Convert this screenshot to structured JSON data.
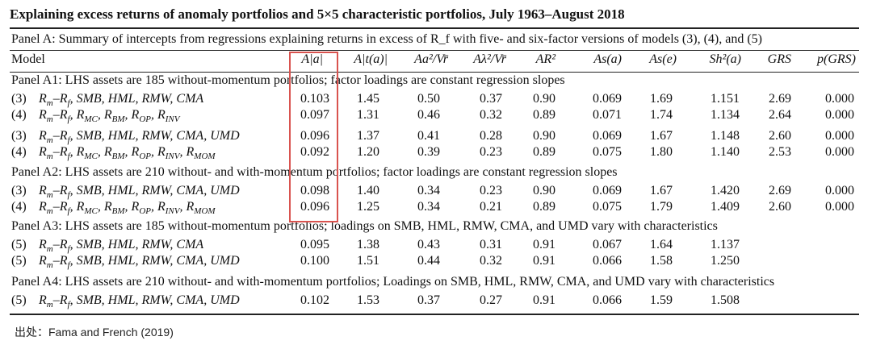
{
  "title": "Explaining excess returns of anomaly portfolios and 5×5 characteristic portfolios, July 1963–August 2018",
  "panel_a": "Panel A: Summary of intercepts from regressions explaining returns in excess of R_f with five- and six-factor versions of models (3), (4), and (5)",
  "columns": [
    "Model",
    "A|a|",
    "A|t(a)|",
    "Aa²/Vr̄",
    "Aλ²/Vr̄",
    "AR²",
    "As(a)",
    "As(e)",
    "Sh²(a)",
    "GRS",
    "p(GRS)"
  ],
  "sections": [
    {
      "label": "Panel A1: LHS assets are 185 without-momentum portfolios; factor loadings are constant regression slopes",
      "rows": [
        {
          "num": "(3)",
          "model": "Rm–Rf, SMB, HML, RMW, CMA",
          "vals": [
            "0.103",
            "1.45",
            "0.50",
            "0.37",
            "0.90",
            "0.069",
            "1.69",
            "1.151",
            "2.69",
            "0.000"
          ]
        },
        {
          "num": "(4)",
          "model": "Rm–Rf, RMC, RBM, ROP, RINV",
          "vals": [
            "0.097",
            "1.31",
            "0.46",
            "0.32",
            "0.89",
            "0.071",
            "1.74",
            "1.134",
            "2.64",
            "0.000"
          ]
        },
        {
          "num": "(3)",
          "model": "Rm–Rf, SMB, HML, RMW, CMA, UMD",
          "vals": [
            "0.096",
            "1.37",
            "0.41",
            "0.28",
            "0.90",
            "0.069",
            "1.67",
            "1.148",
            "2.60",
            "0.000"
          ]
        },
        {
          "num": "(4)",
          "model": "Rm–Rf, RMC, RBM, ROP, RINV, RMOM",
          "vals": [
            "0.092",
            "1.20",
            "0.39",
            "0.23",
            "0.89",
            "0.075",
            "1.80",
            "1.140",
            "2.53",
            "0.000"
          ]
        }
      ]
    },
    {
      "label": "Panel A2: LHS assets are 210 without- and with-momentum portfolios; factor loadings are constant regression slopes",
      "rows": [
        {
          "num": "(3)",
          "model": "Rm–Rf, SMB, HML, RMW, CMA, UMD",
          "vals": [
            "0.098",
            "1.40",
            "0.34",
            "0.23",
            "0.90",
            "0.069",
            "1.67",
            "1.420",
            "2.69",
            "0.000"
          ]
        },
        {
          "num": "(4)",
          "model": "Rm–Rf, RMC, RBM, ROP, RINV, RMOM",
          "vals": [
            "0.096",
            "1.25",
            "0.34",
            "0.21",
            "0.89",
            "0.075",
            "1.79",
            "1.409",
            "2.60",
            "0.000"
          ]
        }
      ]
    },
    {
      "label": "Panel A3: LHS assets are 185 without-momentum portfolios; loadings on SMB, HML, RMW, CMA, and UMD vary with characteristics",
      "rows": [
        {
          "num": "(5)",
          "model": "Rm–Rf, SMB, HML, RMW, CMA",
          "vals": [
            "0.095",
            "1.38",
            "0.43",
            "0.31",
            "0.91",
            "0.067",
            "1.64",
            "1.137",
            "",
            ""
          ]
        },
        {
          "num": "(5)",
          "model": "Rm–Rf, SMB, HML, RMW, CMA, UMD",
          "vals": [
            "0.100",
            "1.51",
            "0.44",
            "0.32",
            "0.91",
            "0.066",
            "1.58",
            "1.250",
            "",
            ""
          ]
        }
      ]
    },
    {
      "label": "Panel A4: LHS assets are 210 without- and with-momentum portfolios; Loadings on SMB, HML, RMW, CMA, and UMD vary with characteristics",
      "rows": [
        {
          "num": "(5)",
          "model": "Rm–Rf, SMB, HML, RMW, CMA, UMD",
          "vals": [
            "0.102",
            "1.53",
            "0.37",
            "0.27",
            "0.91",
            "0.066",
            "1.59",
            "1.508",
            "",
            ""
          ]
        }
      ]
    }
  ],
  "source": "出处：Fama and French (2019)",
  "highlight_color": "#d9534f"
}
